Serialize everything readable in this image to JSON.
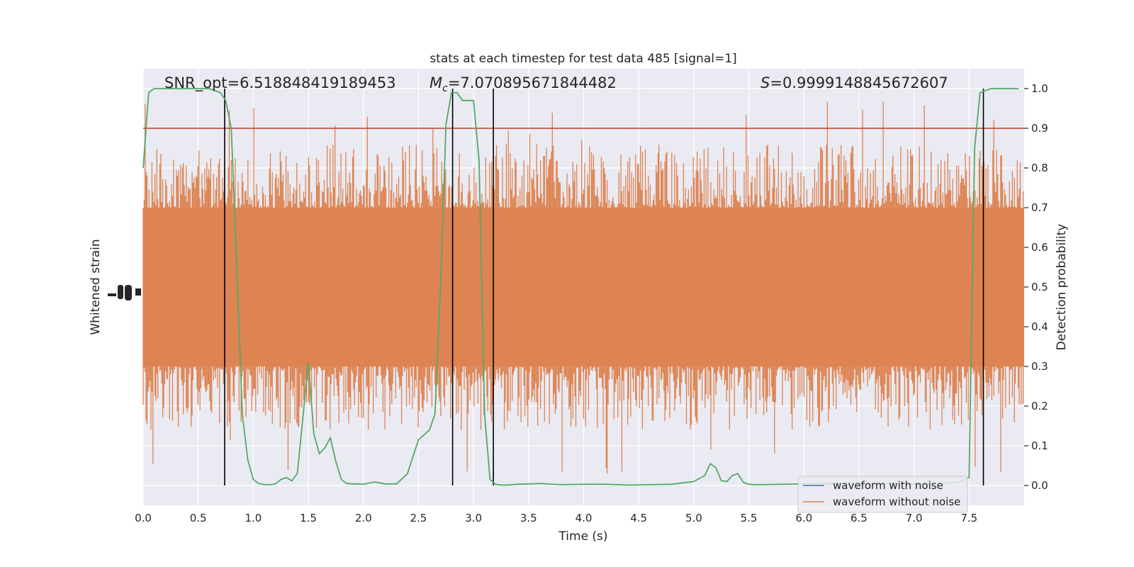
{
  "chart_data": {
    "type": "line",
    "title": "stats at each timestep for test data 485 [signal=1]",
    "xlabel": "Time (s)",
    "ylabel_left": "Whitened strain",
    "ylabel_right": "Detection probability",
    "xlim": [
      0.0,
      8.0
    ],
    "ylim_right": [
      -0.05,
      1.05
    ],
    "x_ticks": [
      0.0,
      0.5,
      1.0,
      1.5,
      2.0,
      2.5,
      3.0,
      3.5,
      4.0,
      4.5,
      5.0,
      5.5,
      6.0,
      6.5,
      7.0,
      7.5
    ],
    "x_tick_labels": [
      "0.0",
      "0.5",
      "1.0",
      "1.5",
      "2.0",
      "2.5",
      "3.0",
      "3.5",
      "4.0",
      "4.5",
      "5.0",
      "5.5",
      "6.0",
      "6.5",
      "7.0",
      "7.5"
    ],
    "y_ticks_right": [
      0.0,
      0.1,
      0.2,
      0.3,
      0.4,
      0.5,
      0.6,
      0.7,
      0.8,
      0.9,
      1.0
    ],
    "y_tick_labels_right": [
      "0.0",
      "0.1",
      "0.2",
      "0.3",
      "0.4",
      "0.5",
      "0.6",
      "0.7",
      "0.8",
      "0.9",
      "1.0"
    ],
    "grid": true,
    "annotations": [
      {
        "text": "SNR_opt=6.518848419189453"
      },
      {
        "prefix": "M",
        "sub": "c",
        "text": "=7.070895671844482"
      },
      {
        "prefix": "S",
        "text": "=0.9999148845672607"
      }
    ],
    "threshold": {
      "y": 0.9,
      "color": "#c0392b"
    },
    "vertical_markers": [
      0.74,
      2.81,
      3.18,
      7.63
    ],
    "legend": {
      "placement": "lower right",
      "entries": [
        {
          "label": "waveform with noise",
          "color": "#4c72b0"
        },
        {
          "label": "waveform without noise",
          "color": "#dd8452"
        }
      ]
    },
    "noise_band": {
      "color": "#dd8452",
      "core_range": [
        0.3,
        0.7
      ],
      "spike_range": [
        0.0,
        1.0
      ]
    },
    "series": [
      {
        "color": "#55a868",
        "x": [
          0.0,
          0.05,
          0.1,
          0.15,
          0.2,
          0.25,
          0.3,
          0.35,
          0.4,
          0.45,
          0.5,
          0.55,
          0.6,
          0.65,
          0.7,
          0.75,
          0.8,
          0.85,
          0.9,
          0.95,
          1.0,
          1.05,
          1.1,
          1.15,
          1.2,
          1.25,
          1.3,
          1.35,
          1.4,
          1.45,
          1.5,
          1.55,
          1.6,
          1.65,
          1.7,
          1.75,
          1.8,
          1.85,
          1.9,
          1.95,
          2.0,
          2.05,
          2.1,
          2.2,
          2.3,
          2.4,
          2.5,
          2.6,
          2.65,
          2.7,
          2.75,
          2.8,
          2.85,
          2.9,
          2.95,
          3.0,
          3.05,
          3.1,
          3.15,
          3.2,
          3.25,
          3.3,
          3.35,
          3.4,
          3.5,
          3.6,
          3.8,
          4.0,
          4.2,
          4.4,
          4.6,
          4.8,
          5.0,
          5.1,
          5.15,
          5.2,
          5.25,
          5.3,
          5.35,
          5.4,
          5.45,
          5.5,
          5.55,
          5.6,
          5.8,
          6.0,
          6.2,
          6.4,
          6.6,
          6.8,
          7.0,
          7.2,
          7.4,
          7.5,
          7.55,
          7.6,
          7.65,
          7.7,
          7.75,
          7.8,
          7.85,
          7.9,
          7.95
        ],
        "values": [
          0.8,
          0.99,
          1.0,
          1.0,
          1.0,
          1.0,
          1.0,
          1.0,
          1.0,
          1.0,
          1.0,
          1.0,
          1.0,
          0.995,
          0.99,
          0.97,
          0.9,
          0.55,
          0.18,
          0.065,
          0.015,
          0.005,
          0.002,
          0.002,
          0.004,
          0.015,
          0.02,
          0.012,
          0.03,
          0.17,
          0.31,
          0.13,
          0.08,
          0.095,
          0.12,
          0.06,
          0.015,
          0.005,
          0.004,
          0.004,
          0.003,
          0.006,
          0.009,
          0.004,
          0.004,
          0.03,
          0.115,
          0.14,
          0.18,
          0.5,
          0.91,
          0.99,
          0.99,
          0.97,
          0.97,
          0.97,
          0.82,
          0.18,
          0.015,
          0.003,
          0.001,
          0.001,
          0.002,
          0.003,
          0.004,
          0.005,
          0.002,
          0.003,
          0.003,
          0.001,
          0.002,
          0.003,
          0.01,
          0.025,
          0.055,
          0.045,
          0.012,
          0.01,
          0.025,
          0.03,
          0.008,
          0.003,
          0.002,
          0.002,
          0.003,
          0.004,
          0.005,
          0.004,
          0.004,
          0.005,
          0.004,
          0.005,
          0.008,
          0.02,
          0.85,
          0.99,
          0.995,
          1.0,
          1.0,
          1.0,
          1.0,
          1.0,
          1.0
        ]
      }
    ]
  }
}
